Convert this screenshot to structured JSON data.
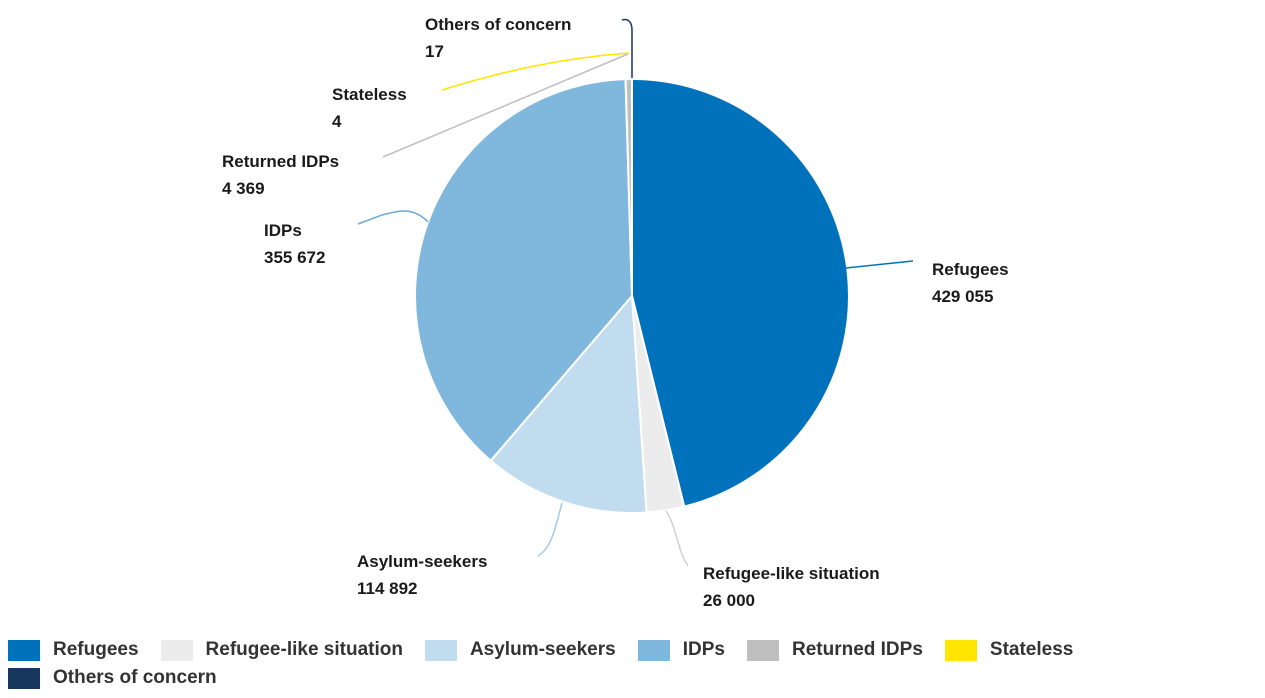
{
  "chart_data": {
    "type": "pie",
    "slices": [
      {
        "name": "Refugees",
        "value": 429055,
        "value_label": "429 055",
        "color": "#0072bc"
      },
      {
        "name": "Refugee-like situation",
        "value": 26000,
        "value_label": "26 000",
        "color": "#ececec"
      },
      {
        "name": "Asylum-seekers",
        "value": 114892,
        "value_label": "114 892",
        "color": "#c1dcee"
      },
      {
        "name": "IDPs",
        "value": 355672,
        "value_label": "355 672",
        "color": "#80b8dd"
      },
      {
        "name": "Returned IDPs",
        "value": 4369,
        "value_label": "4 369",
        "color": "#bfbfbf"
      },
      {
        "name": "Stateless",
        "value": 4,
        "value_label": "4",
        "color": "#ffe600"
      },
      {
        "name": "Others of concern",
        "value": 17,
        "value_label": "17",
        "color": "#18375f"
      }
    ],
    "legend": {
      "placement": "bottom",
      "items": [
        "Refugees",
        "Refugee-like situation",
        "Asylum-seekers",
        "IDPs",
        "Returned IDPs",
        "Stateless",
        "Others of concern"
      ]
    }
  }
}
